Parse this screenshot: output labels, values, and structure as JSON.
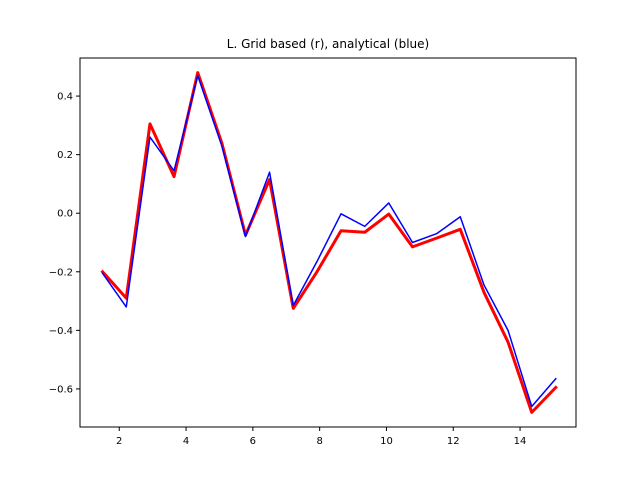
{
  "chart_data": {
    "type": "line",
    "title": "L. Grid based (r), analytical (blue)",
    "xlabel": "",
    "ylabel": "",
    "xlim": [
      0.825,
      15.675
    ],
    "ylim": [
      -0.73,
      0.53
    ],
    "xticks": [
      2,
      4,
      6,
      8,
      10,
      12,
      14
    ],
    "yticks": [
      -0.6,
      -0.4,
      -0.2,
      0.0,
      0.2,
      0.4
    ],
    "xtick_labels": [
      "2",
      "4",
      "6",
      "8",
      "10",
      "12",
      "14"
    ],
    "ytick_labels": [
      "−0.6",
      "−0.4",
      "−0.2",
      "0.0",
      "0.2",
      "0.4"
    ],
    "grid": false,
    "x": [
      1.5,
      2.21,
      2.92,
      3.64,
      4.35,
      5.07,
      5.78,
      6.5,
      7.21,
      7.92,
      8.64,
      9.35,
      10.07,
      10.78,
      11.5,
      12.21,
      12.92,
      13.64,
      14.35,
      15.07
    ],
    "series": [
      {
        "color": "#ff0000",
        "linewidth": 3,
        "values": [
          -0.2,
          -0.29,
          0.305,
          0.125,
          0.48,
          0.24,
          -0.075,
          0.115,
          -0.325,
          -0.2,
          -0.06,
          -0.065,
          -0.003,
          -0.115,
          -0.085,
          -0.055,
          -0.27,
          -0.44,
          -0.68,
          -0.595
        ]
      },
      {
        "color": "#0000ff",
        "linewidth": 1.5,
        "values": [
          -0.205,
          -0.32,
          0.26,
          0.145,
          0.47,
          0.23,
          -0.08,
          0.14,
          -0.315,
          -0.165,
          -0.002,
          -0.045,
          0.035,
          -0.1,
          -0.07,
          -0.012,
          -0.245,
          -0.4,
          -0.66,
          -0.565
        ]
      }
    ]
  }
}
